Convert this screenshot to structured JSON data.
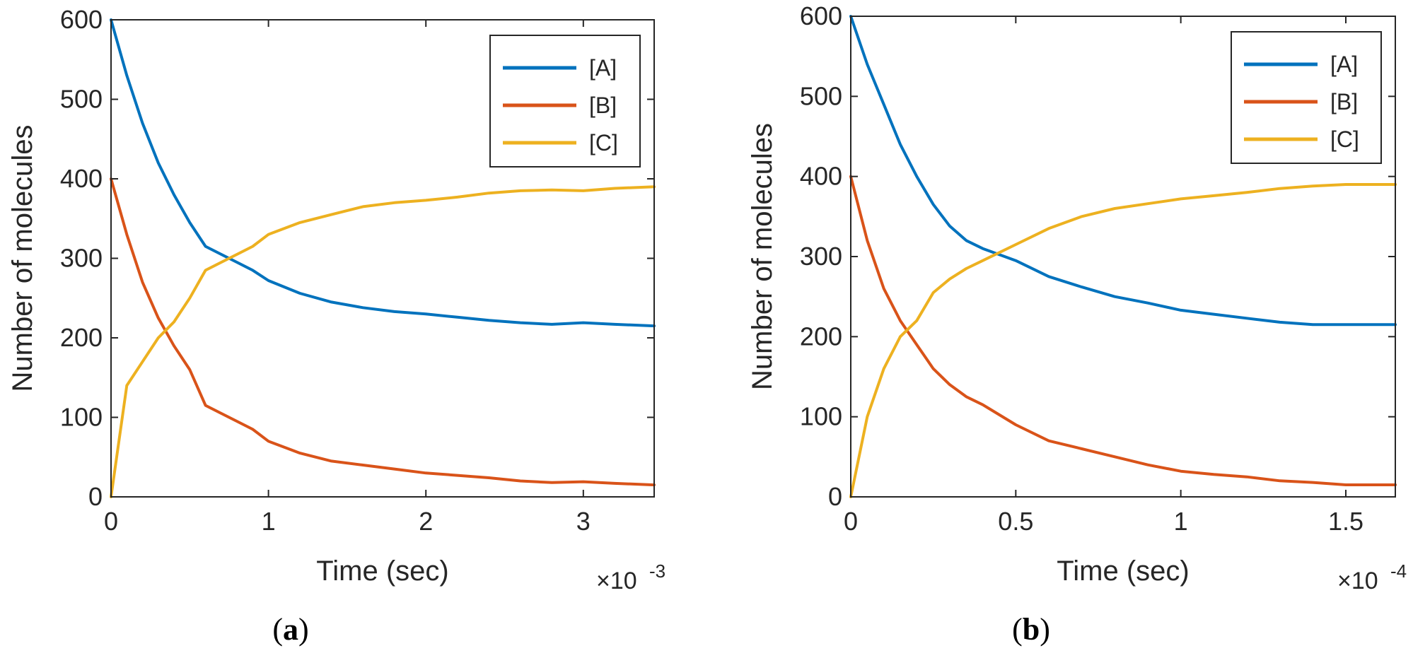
{
  "chart_data": [
    {
      "type": "line",
      "panel_label": "a",
      "title": "",
      "xlabel": "Time (sec)",
      "ylabel": "Number of molecules",
      "x_multiplier": "×10",
      "x_exponent": "-3",
      "xlim": [
        0,
        3.45
      ],
      "ylim": [
        0,
        600
      ],
      "xticks": [
        0,
        1,
        2,
        3
      ],
      "xtick_labels": [
        "0",
        "1",
        "2",
        "3"
      ],
      "yticks": [
        0,
        100,
        200,
        300,
        400,
        500,
        600
      ],
      "ytick_labels": [
        "0",
        "100",
        "200",
        "300",
        "400",
        "500",
        "600"
      ],
      "grid": false,
      "legend_position": "top-right",
      "series": [
        {
          "name": "[A]",
          "color": "#0072BD",
          "x": [
            0,
            0.1,
            0.2,
            0.3,
            0.4,
            0.5,
            0.6,
            0.7,
            0.8,
            0.9,
            1.0,
            1.2,
            1.4,
            1.6,
            1.8,
            2.0,
            2.2,
            2.4,
            2.6,
            2.8,
            3.0,
            3.2,
            3.45
          ],
          "values": [
            600,
            530,
            470,
            420,
            380,
            345,
            315,
            305,
            295,
            285,
            272,
            256,
            245,
            238,
            233,
            230,
            226,
            222,
            219,
            217,
            219,
            217,
            215
          ]
        },
        {
          "name": "[B]",
          "color": "#D95319",
          "x": [
            0,
            0.1,
            0.2,
            0.3,
            0.4,
            0.5,
            0.6,
            0.7,
            0.8,
            0.9,
            1.0,
            1.2,
            1.4,
            1.6,
            1.8,
            2.0,
            2.2,
            2.4,
            2.6,
            2.8,
            3.0,
            3.2,
            3.45
          ],
          "values": [
            400,
            330,
            270,
            225,
            190,
            160,
            115,
            105,
            95,
            85,
            70,
            55,
            45,
            40,
            35,
            30,
            27,
            24,
            20,
            18,
            19,
            17,
            15
          ]
        },
        {
          "name": "[C]",
          "color": "#EDB120",
          "x": [
            0,
            0.1,
            0.2,
            0.3,
            0.4,
            0.5,
            0.6,
            0.7,
            0.8,
            0.9,
            1.0,
            1.2,
            1.4,
            1.6,
            1.8,
            2.0,
            2.2,
            2.4,
            2.6,
            2.8,
            3.0,
            3.2,
            3.45
          ],
          "values": [
            0,
            140,
            170,
            200,
            220,
            250,
            285,
            295,
            305,
            315,
            330,
            345,
            355,
            365,
            370,
            373,
            377,
            382,
            385,
            386,
            385,
            388,
            390
          ]
        }
      ]
    },
    {
      "type": "line",
      "panel_label": "b",
      "title": "",
      "xlabel": "Time (sec)",
      "ylabel": "Number of molecules",
      "x_multiplier": "×10",
      "x_exponent": "-4",
      "xlim": [
        0,
        1.65
      ],
      "ylim": [
        0,
        600
      ],
      "xticks": [
        0,
        0.5,
        1,
        1.5
      ],
      "xtick_labels": [
        "0",
        "0.5",
        "1",
        "1.5"
      ],
      "yticks": [
        0,
        100,
        200,
        300,
        400,
        500,
        600
      ],
      "ytick_labels": [
        "0",
        "100",
        "200",
        "300",
        "400",
        "500",
        "600"
      ],
      "grid": false,
      "legend_position": "top-right",
      "series": [
        {
          "name": "[A]",
          "color": "#0072BD",
          "x": [
            0,
            0.05,
            0.1,
            0.15,
            0.2,
            0.25,
            0.3,
            0.35,
            0.4,
            0.5,
            0.6,
            0.7,
            0.8,
            0.9,
            1.0,
            1.1,
            1.2,
            1.3,
            1.4,
            1.5,
            1.65
          ],
          "values": [
            600,
            540,
            490,
            440,
            400,
            365,
            338,
            320,
            310,
            295,
            275,
            262,
            250,
            242,
            233,
            228,
            223,
            218,
            215,
            215,
            215
          ]
        },
        {
          "name": "[B]",
          "color": "#D95319",
          "x": [
            0,
            0.05,
            0.1,
            0.15,
            0.2,
            0.25,
            0.3,
            0.35,
            0.4,
            0.5,
            0.6,
            0.7,
            0.8,
            0.9,
            1.0,
            1.1,
            1.2,
            1.3,
            1.4,
            1.5,
            1.65
          ],
          "values": [
            400,
            320,
            260,
            220,
            190,
            160,
            140,
            125,
            115,
            90,
            70,
            60,
            50,
            40,
            32,
            28,
            25,
            20,
            18,
            15,
            15
          ]
        },
        {
          "name": "[C]",
          "color": "#EDB120",
          "x": [
            0,
            0.05,
            0.1,
            0.15,
            0.2,
            0.25,
            0.3,
            0.35,
            0.4,
            0.5,
            0.6,
            0.7,
            0.8,
            0.9,
            1.0,
            1.1,
            1.2,
            1.3,
            1.4,
            1.5,
            1.65
          ],
          "values": [
            0,
            100,
            160,
            200,
            220,
            255,
            272,
            285,
            295,
            315,
            335,
            350,
            360,
            366,
            372,
            376,
            380,
            385,
            388,
            390,
            390
          ]
        }
      ]
    }
  ]
}
